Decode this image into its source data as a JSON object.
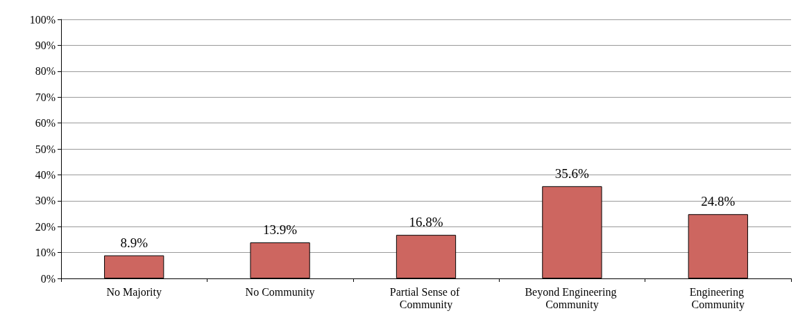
{
  "chart_data": {
    "type": "bar",
    "categories": [
      "No Majority",
      "No Community",
      "Partial Sense of Community",
      "Beyond Engineering Community",
      "Engineering Community"
    ],
    "values": [
      8.9,
      13.9,
      16.8,
      35.6,
      24.8
    ],
    "value_labels": [
      "8.9%",
      "13.9%",
      "16.8%",
      "35.6%",
      "24.8%"
    ],
    "color": "#cd6660",
    "ylim": [
      0,
      100
    ],
    "yticks": [
      {
        "value": 0,
        "label": "0%"
      },
      {
        "value": 10,
        "label": "10%"
      },
      {
        "value": 20,
        "label": "20%"
      },
      {
        "value": 30,
        "label": "30%"
      },
      {
        "value": 40,
        "label": "40%"
      },
      {
        "value": 50,
        "label": "50%"
      },
      {
        "value": 60,
        "label": "60%"
      },
      {
        "value": 70,
        "label": "70%"
      },
      {
        "value": 80,
        "label": "80%"
      },
      {
        "value": 90,
        "label": "90%"
      },
      {
        "value": 100,
        "label": "100%"
      }
    ],
    "grid": "y"
  }
}
